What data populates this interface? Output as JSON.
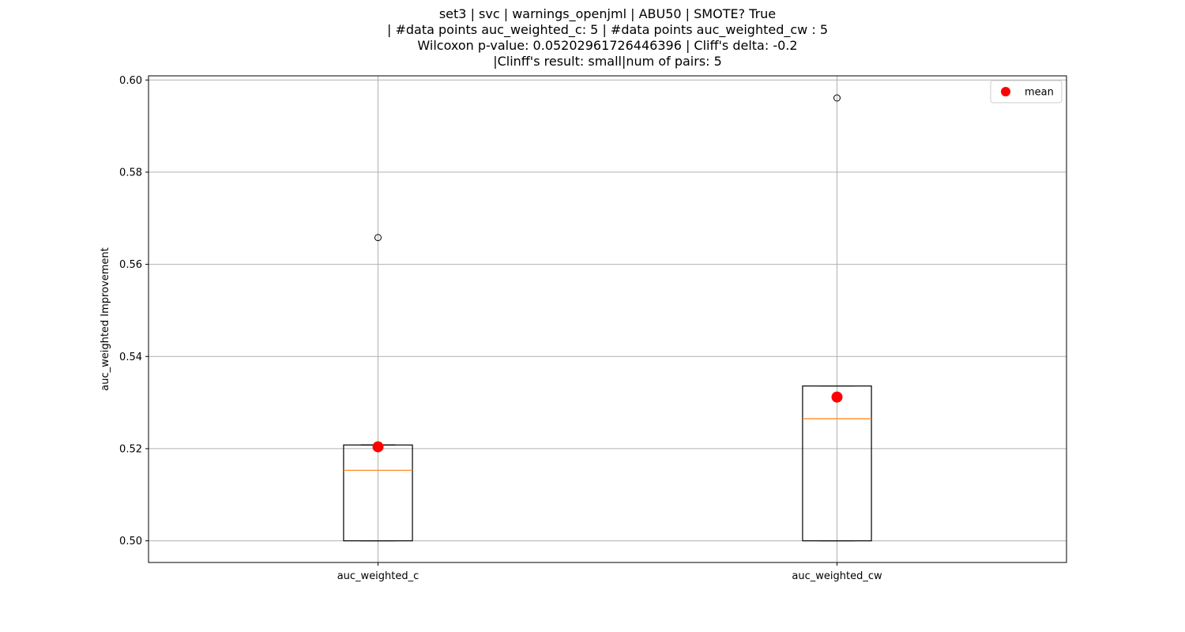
{
  "chart_data": {
    "type": "box",
    "title_lines": [
      "set3 | svc | warnings_openjml | ABU50 | SMOTE? True",
      "| #data points auc_weighted_c: 5 | #data points auc_weighted_cw : 5",
      "Wilcoxon p-value: 0.05202961726446396 | Cliff's delta: -0.2",
      "|Clinff's result: small|num of pairs: 5"
    ],
    "xlabel": "",
    "ylabel": "auc_weighted Improvement",
    "ylim": [
      0.4953,
      0.6009
    ],
    "yticks": [
      0.5,
      0.52,
      0.54,
      0.56,
      0.58,
      0.6
    ],
    "ytick_labels": [
      "0.50",
      "0.52",
      "0.54",
      "0.56",
      "0.58",
      "0.60"
    ],
    "grid": true,
    "legend": {
      "position": "top-right",
      "entries": [
        {
          "label": "mean",
          "color": "#ff0000",
          "marker": "circle"
        }
      ]
    },
    "colors": {
      "box": "#000000",
      "median": "#ff7f0e",
      "mean": "#ff0000",
      "grid": "#b0b0b0"
    },
    "categories": [
      "auc_weighted_c",
      "auc_weighted_cw"
    ],
    "boxes": [
      {
        "name": "auc_weighted_c",
        "whislo": 0.5,
        "q1": 0.5,
        "med": 0.5153,
        "q3": 0.5208,
        "whishi": 0.5208,
        "mean": 0.5204,
        "fliers": [
          0.5658
        ]
      },
      {
        "name": "auc_weighted_cw",
        "whislo": 0.5,
        "q1": 0.5,
        "med": 0.5265,
        "q3": 0.5336,
        "whishi": 0.5336,
        "mean": 0.5312,
        "fliers": [
          0.5961
        ]
      }
    ]
  }
}
